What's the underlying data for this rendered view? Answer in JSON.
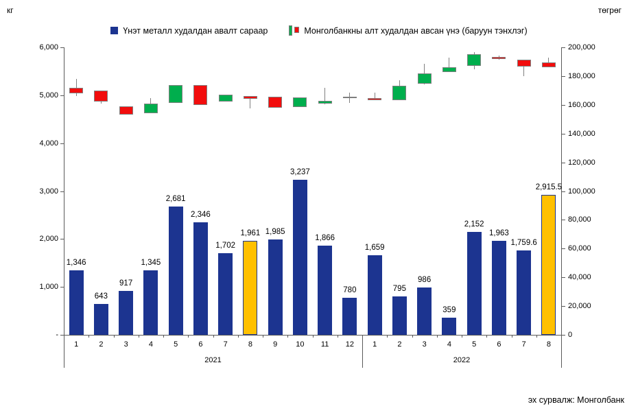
{
  "units": {
    "left": "кг",
    "right": "төгрөг"
  },
  "legend": {
    "bar_label": "Үнэт металл худалдан авалт сараар",
    "candle_label": "Монголбанкны алт худалдан авсан үнэ (баруун тэнхлэг)"
  },
  "source": "эх сурвалж: Монголбанк",
  "colors": {
    "bar": "#1c3490",
    "bar_highlight": "#ffc000",
    "bar_highlight_border": "#1c3490",
    "candle_up": "#00ae4d",
    "candle_down": "#f20d0d",
    "candle_border": "#7f7f7f",
    "doji": "#7f7f7f",
    "axis": "#595959",
    "text": "#000000"
  },
  "chart_data": {
    "type": "combo",
    "title": "",
    "categories": {
      "years": [
        {
          "label": "2021",
          "months": [
            "1",
            "2",
            "3",
            "4",
            "5",
            "6",
            "7",
            "8",
            "9",
            "10",
            "11",
            "12"
          ]
        },
        {
          "label": "2022",
          "months": [
            "1",
            "2",
            "3",
            "4",
            "5",
            "6",
            "7",
            "8"
          ]
        }
      ]
    },
    "left_axis": {
      "unit": "кг",
      "min": 0,
      "max": 6000,
      "tick_step": 1000,
      "tick_labels": [
        "-",
        "1,000",
        "2,000",
        "3,000",
        "4,000",
        "5,000",
        "6,000"
      ]
    },
    "right_axis": {
      "unit": "төгрөг",
      "min": 0,
      "max": 200000,
      "tick_step": 20000,
      "tick_labels": [
        "0",
        "20,000",
        "40,000",
        "60,000",
        "80,000",
        "100,000",
        "120,000",
        "140,000",
        "160,000",
        "180,000",
        "200,000"
      ]
    },
    "grid": false,
    "legend_position": "top-center",
    "series": [
      {
        "name": "Үнэт металл худалдан авалт сараар",
        "type": "bar",
        "axis": "left",
        "values": [
          1346,
          643,
          917,
          1345,
          2681,
          2346,
          1702,
          1961,
          1985,
          3237,
          1866,
          780,
          1659,
          795,
          986,
          359,
          2152,
          1963,
          1759.6,
          2915.5
        ],
        "labels": [
          "1,346",
          "643",
          "917",
          "1,345",
          "2,681",
          "2,346",
          "1,702",
          "1,961",
          "1,985",
          "3,237",
          "1,866",
          "780",
          "1,659",
          "795",
          "986",
          "359",
          "2,152",
          "1,963",
          "1,759.6",
          "2,915.5"
        ],
        "highlighted_indices": [
          7,
          19
        ]
      },
      {
        "name": "Монголбанкны алт худалдан авсан үнэ (баруун тэнхлэг)",
        "type": "candlestick",
        "axis": "right",
        "ohlc_note": "values are [open, high, low, close] in tugrik, estimated from right axis",
        "ohlc": [
          [
            171800,
            178000,
            166100,
            168000
          ],
          [
            170000,
            170000,
            161000,
            162300
          ],
          [
            159000,
            159000,
            153200,
            153200
          ],
          [
            154200,
            164700,
            154200,
            160800
          ],
          [
            161300,
            173700,
            161300,
            173700
          ],
          [
            173700,
            173700,
            159900,
            159900
          ],
          [
            162300,
            167000,
            162300,
            167000
          ],
          [
            166100,
            166100,
            157500,
            164200
          ],
          [
            165600,
            165600,
            158000,
            158000
          ],
          [
            158500,
            165100,
            158500,
            165100
          ],
          [
            161000,
            172000,
            160400,
            163000
          ],
          [
            165100,
            168500,
            161300,
            165100
          ],
          [
            164600,
            168500,
            163200,
            163200
          ],
          [
            163200,
            177000,
            163200,
            173200
          ],
          [
            174700,
            188500,
            174300,
            181800
          ],
          [
            182800,
            192800,
            182800,
            186100
          ],
          [
            187100,
            196600,
            184700,
            195200
          ],
          [
            193300,
            194200,
            191400,
            191800
          ],
          [
            191400,
            191400,
            179900,
            186600
          ],
          [
            189500,
            192800,
            186100,
            186100
          ]
        ]
      }
    ]
  }
}
